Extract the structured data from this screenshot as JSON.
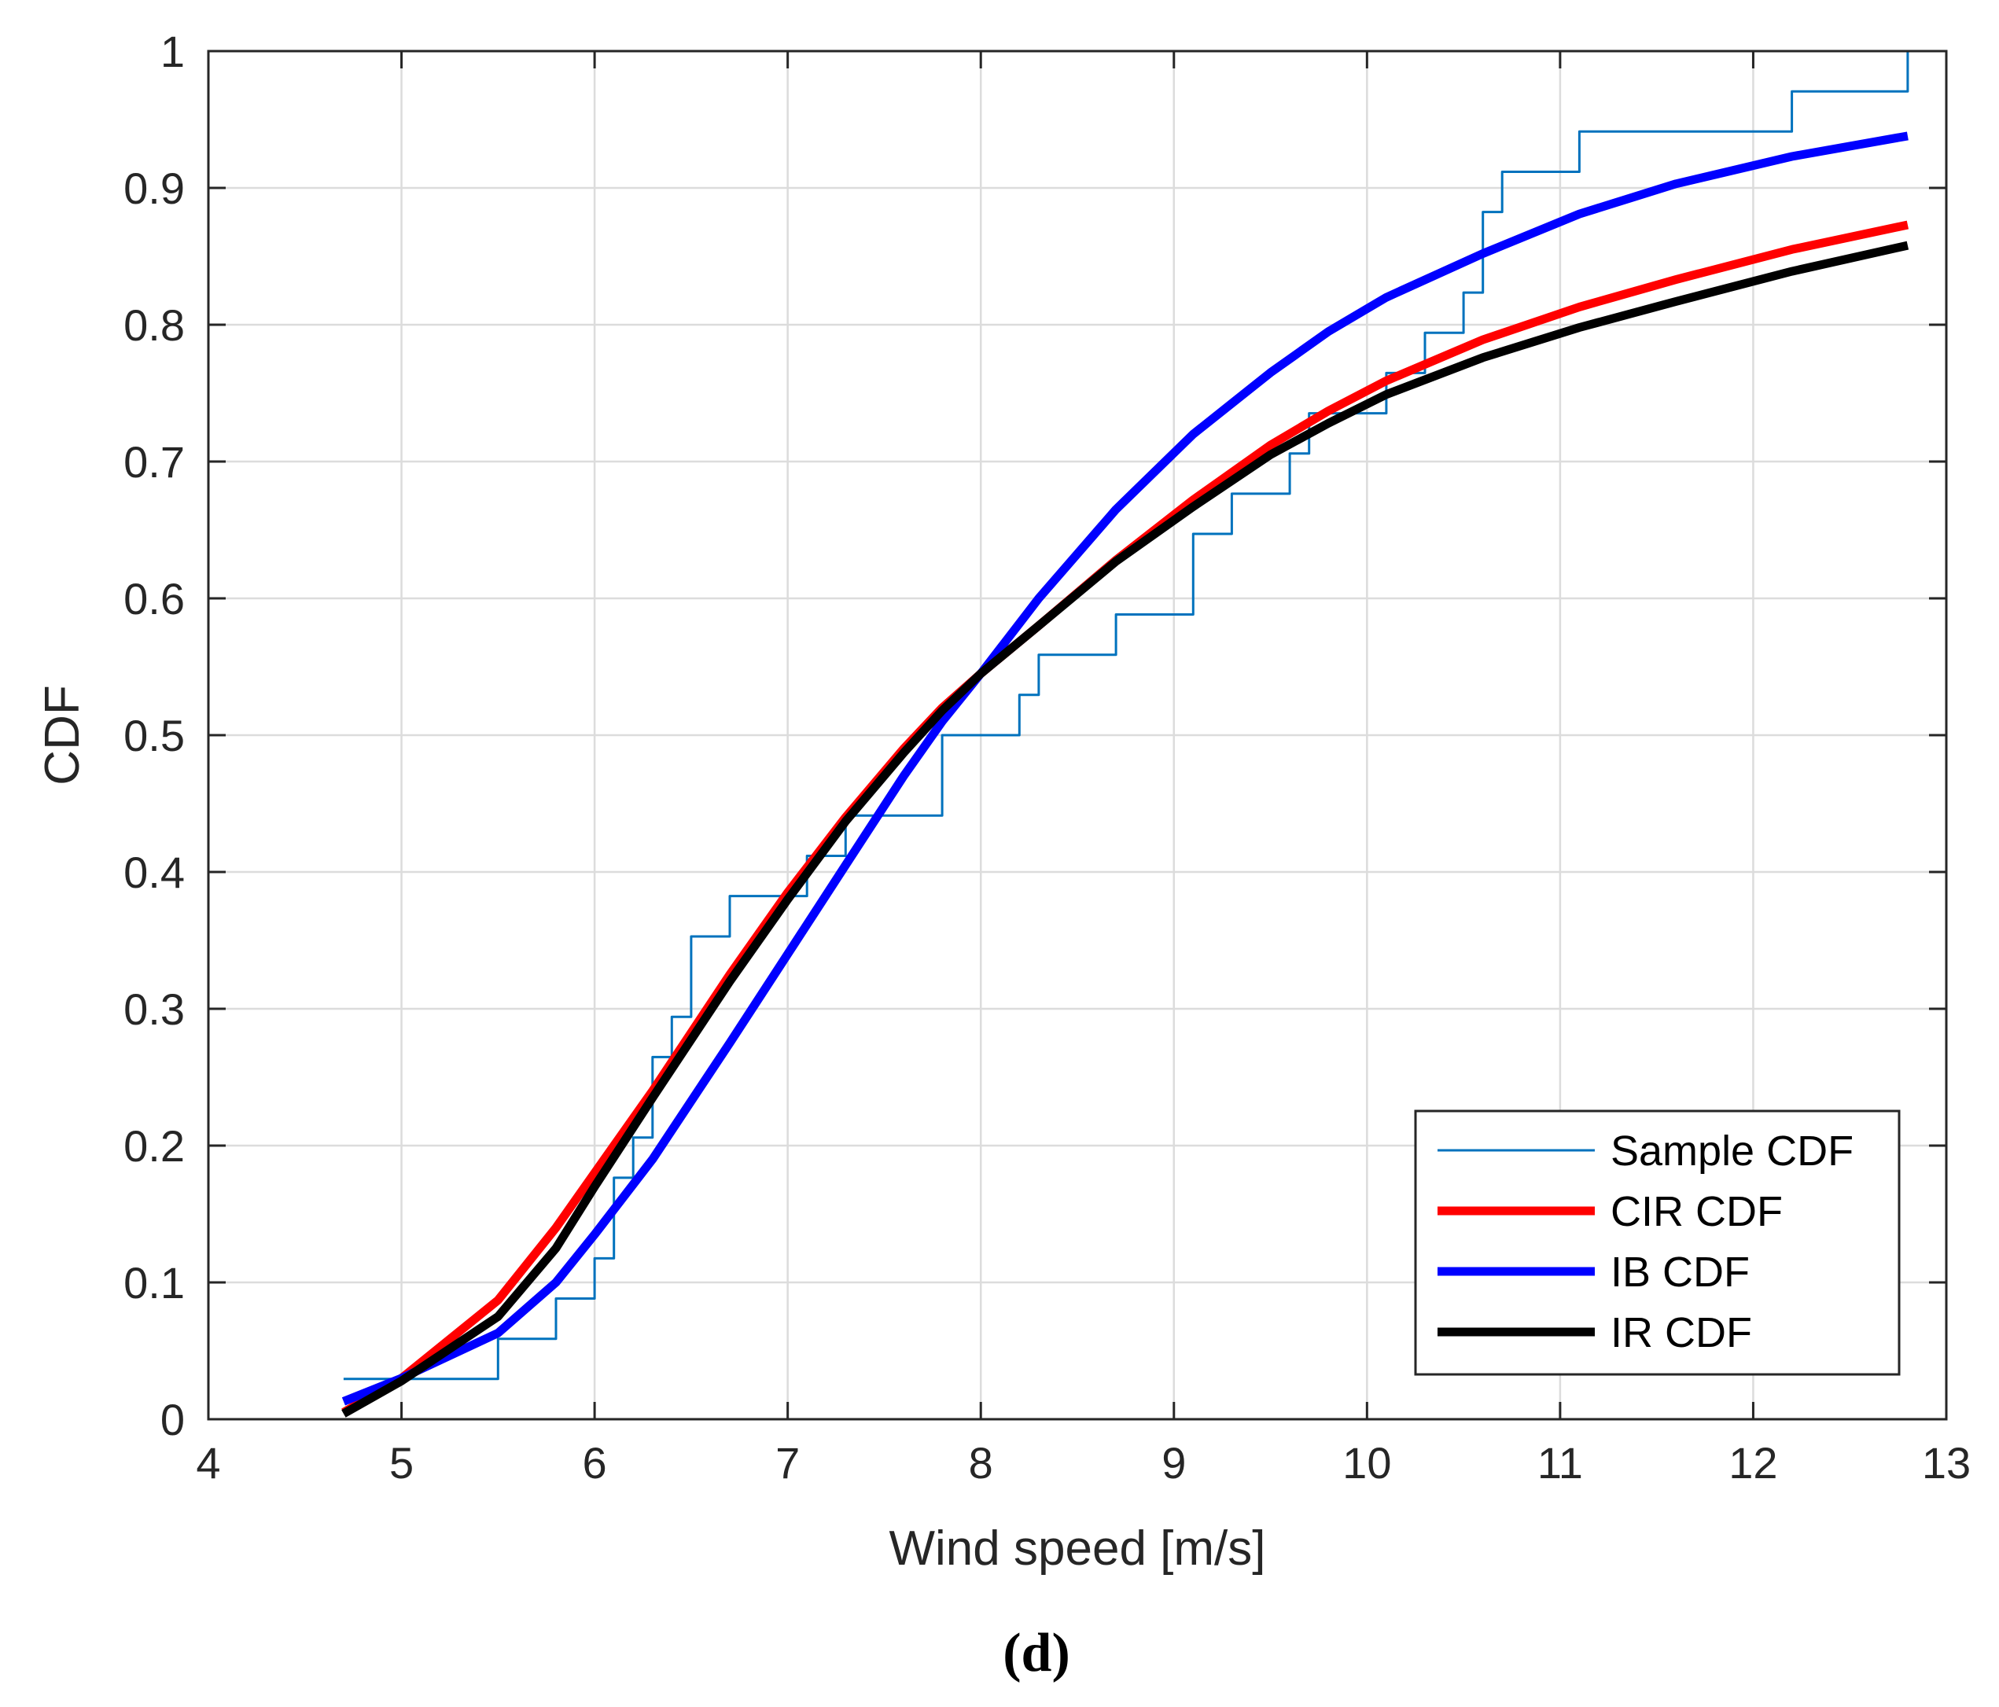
{
  "chart_data": {
    "type": "line",
    "title": "",
    "caption": "(d)",
    "xlabel": "Wind speed [m/s]",
    "ylabel": "CDF",
    "xlim": [
      4,
      13
    ],
    "ylim": [
      0,
      1
    ],
    "xticks": [
      4,
      5,
      6,
      7,
      8,
      9,
      10,
      11,
      12,
      13
    ],
    "xtick_labels": [
      "4",
      "5",
      "6",
      "7",
      "8",
      "9",
      "10",
      "11",
      "12",
      "13"
    ],
    "yticks": [
      0,
      0.1,
      0.2,
      0.3,
      0.4,
      0.5,
      0.6,
      0.7,
      0.8,
      0.9,
      1
    ],
    "ytick_labels": [
      "0",
      "0.1",
      "0.2",
      "0.3",
      "0.4",
      "0.5",
      "0.6",
      "0.7",
      "0.8",
      "0.9",
      "1"
    ],
    "grid": true,
    "legend_position": "bottom-right",
    "series": [
      {
        "name": "Sample CDF",
        "color": "#0072BD",
        "style": "step",
        "x": [
          4.7,
          5.5,
          5.8,
          6.0,
          6.1,
          6.2,
          6.3,
          6.4,
          6.5,
          6.7,
          7.1,
          7.2,
          7.3,
          7.8,
          8.2,
          8.3,
          8.7,
          9.1,
          9.3,
          9.6,
          9.7,
          10.1,
          10.2,
          10.3,
          10.5,
          10.6,
          10.7,
          11.1,
          12.2,
          12.8
        ],
        "y": [
          0.0294,
          0.0588,
          0.0882,
          0.1176,
          0.1765,
          0.2059,
          0.2647,
          0.2941,
          0.3529,
          0.3824,
          0.4118,
          0.4118,
          0.4412,
          0.5,
          0.5294,
          0.5588,
          0.5882,
          0.6471,
          0.6765,
          0.7059,
          0.7353,
          0.7647,
          0.7647,
          0.7941,
          0.8235,
          0.8824,
          0.9118,
          0.9412,
          0.9706,
          1.0
        ]
      },
      {
        "name": "CIR CDF",
        "color": "#FF0000",
        "style": "line",
        "x": [
          4.7,
          5.0,
          5.5,
          5.8,
          6.0,
          6.3,
          6.7,
          7.0,
          7.3,
          7.6,
          7.8,
          8.0,
          8.3,
          8.7,
          9.1,
          9.5,
          9.8,
          10.1,
          10.6,
          11.1,
          11.6,
          12.2,
          12.8
        ],
        "y": [
          0.005,
          0.03,
          0.087,
          0.14,
          0.18,
          0.24,
          0.325,
          0.385,
          0.44,
          0.49,
          0.52,
          0.545,
          0.58,
          0.628,
          0.672,
          0.712,
          0.737,
          0.759,
          0.789,
          0.813,
          0.833,
          0.855,
          0.873
        ]
      },
      {
        "name": "IB CDF",
        "color": "#0000FF",
        "style": "line",
        "x": [
          4.7,
          5.0,
          5.5,
          5.8,
          6.0,
          6.3,
          6.7,
          7.0,
          7.3,
          7.6,
          7.8,
          8.0,
          8.3,
          8.7,
          9.1,
          9.5,
          9.8,
          10.1,
          10.6,
          11.1,
          11.6,
          12.2,
          12.8
        ],
        "y": [
          0.013,
          0.03,
          0.063,
          0.1,
          0.135,
          0.19,
          0.275,
          0.34,
          0.405,
          0.47,
          0.51,
          0.545,
          0.6,
          0.665,
          0.72,
          0.765,
          0.795,
          0.82,
          0.852,
          0.881,
          0.903,
          0.923,
          0.938
        ]
      },
      {
        "name": "IR CDF",
        "color": "#000000",
        "style": "line",
        "x": [
          4.7,
          5.0,
          5.5,
          5.8,
          6.0,
          6.3,
          6.7,
          7.0,
          7.3,
          7.6,
          7.8,
          8.0,
          8.3,
          8.7,
          9.1,
          9.5,
          9.8,
          10.1,
          10.6,
          11.1,
          11.6,
          12.2,
          12.8
        ],
        "y": [
          0.004,
          0.028,
          0.075,
          0.125,
          0.17,
          0.235,
          0.32,
          0.38,
          0.437,
          0.487,
          0.518,
          0.545,
          0.58,
          0.627,
          0.667,
          0.705,
          0.728,
          0.749,
          0.776,
          0.798,
          0.817,
          0.839,
          0.858
        ]
      }
    ]
  }
}
